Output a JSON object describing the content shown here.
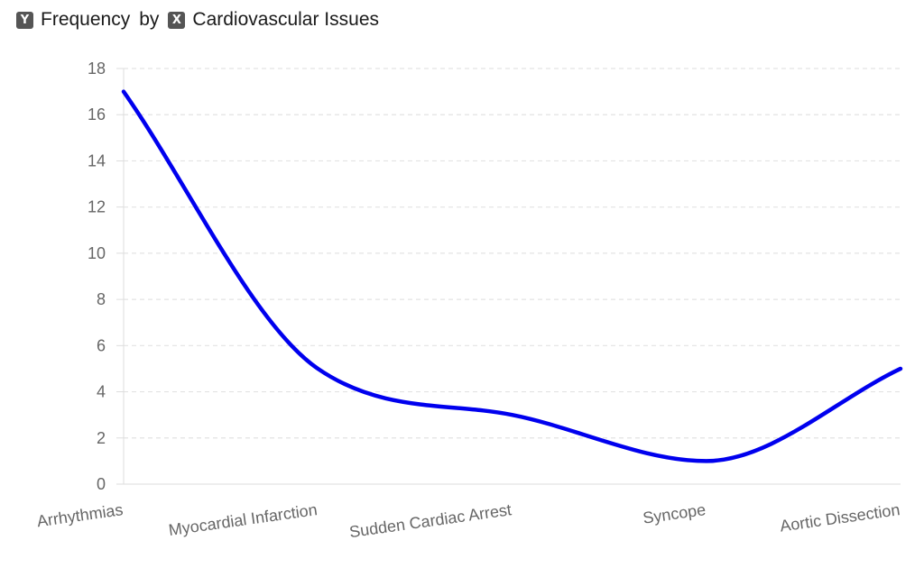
{
  "header": {
    "y_badge": "Y",
    "y_field": "Frequency",
    "connector": "by",
    "x_badge": "X",
    "x_field": "Cardiovascular Issues"
  },
  "colors": {
    "line": "#0000ee",
    "grid": "#e3e3e3",
    "axis": "#dddddd",
    "tick_text": "#666666"
  },
  "chart_data": {
    "type": "line",
    "curve": "smooth",
    "categories": [
      "Arrhythmias",
      "Myocardial Infarction",
      "Sudden Cardiac Arrest",
      "Syncope",
      "Aortic Dissection"
    ],
    "values": [
      17,
      5,
      3,
      1,
      5
    ],
    "ylim": [
      0,
      18
    ],
    "yticks": [
      0,
      2,
      4,
      6,
      8,
      10,
      12,
      14,
      16,
      18
    ],
    "grid": true,
    "xlabel": "",
    "ylabel": ""
  }
}
